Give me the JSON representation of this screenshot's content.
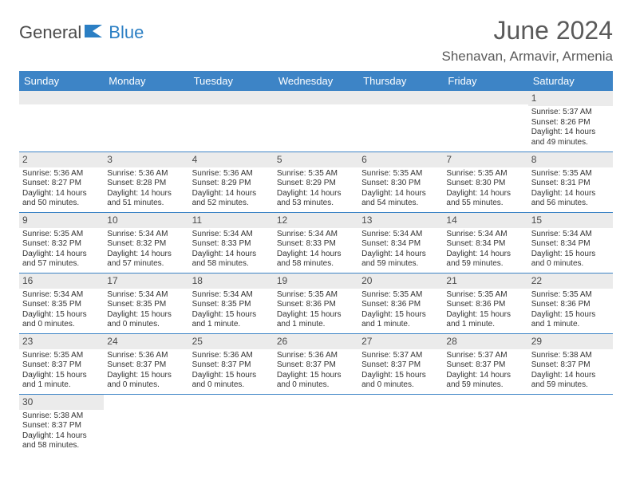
{
  "logo": {
    "part1": "General",
    "part2": "Blue"
  },
  "title": "June 2024",
  "location": "Shenavan, Armavir, Armenia",
  "colors": {
    "header_bg": "#3d84c6",
    "header_text": "#ffffff",
    "daynum_bg": "#ebebeb",
    "border": "#3d84c6",
    "text": "#333333",
    "title_text": "#5a5a5a",
    "logo_gray": "#4a4a4a",
    "logo_blue": "#2b7fc4"
  },
  "weekdays": [
    "Sunday",
    "Monday",
    "Tuesday",
    "Wednesday",
    "Thursday",
    "Friday",
    "Saturday"
  ],
  "weeks": [
    [
      null,
      null,
      null,
      null,
      null,
      null,
      {
        "d": "1",
        "sr": "5:37 AM",
        "ss": "8:26 PM",
        "dl": "14 hours and 49 minutes."
      }
    ],
    [
      {
        "d": "2",
        "sr": "5:36 AM",
        "ss": "8:27 PM",
        "dl": "14 hours and 50 minutes."
      },
      {
        "d": "3",
        "sr": "5:36 AM",
        "ss": "8:28 PM",
        "dl": "14 hours and 51 minutes."
      },
      {
        "d": "4",
        "sr": "5:36 AM",
        "ss": "8:29 PM",
        "dl": "14 hours and 52 minutes."
      },
      {
        "d": "5",
        "sr": "5:35 AM",
        "ss": "8:29 PM",
        "dl": "14 hours and 53 minutes."
      },
      {
        "d": "6",
        "sr": "5:35 AM",
        "ss": "8:30 PM",
        "dl": "14 hours and 54 minutes."
      },
      {
        "d": "7",
        "sr": "5:35 AM",
        "ss": "8:30 PM",
        "dl": "14 hours and 55 minutes."
      },
      {
        "d": "8",
        "sr": "5:35 AM",
        "ss": "8:31 PM",
        "dl": "14 hours and 56 minutes."
      }
    ],
    [
      {
        "d": "9",
        "sr": "5:35 AM",
        "ss": "8:32 PM",
        "dl": "14 hours and 57 minutes."
      },
      {
        "d": "10",
        "sr": "5:34 AM",
        "ss": "8:32 PM",
        "dl": "14 hours and 57 minutes."
      },
      {
        "d": "11",
        "sr": "5:34 AM",
        "ss": "8:33 PM",
        "dl": "14 hours and 58 minutes."
      },
      {
        "d": "12",
        "sr": "5:34 AM",
        "ss": "8:33 PM",
        "dl": "14 hours and 58 minutes."
      },
      {
        "d": "13",
        "sr": "5:34 AM",
        "ss": "8:34 PM",
        "dl": "14 hours and 59 minutes."
      },
      {
        "d": "14",
        "sr": "5:34 AM",
        "ss": "8:34 PM",
        "dl": "14 hours and 59 minutes."
      },
      {
        "d": "15",
        "sr": "5:34 AM",
        "ss": "8:34 PM",
        "dl": "15 hours and 0 minutes."
      }
    ],
    [
      {
        "d": "16",
        "sr": "5:34 AM",
        "ss": "8:35 PM",
        "dl": "15 hours and 0 minutes."
      },
      {
        "d": "17",
        "sr": "5:34 AM",
        "ss": "8:35 PM",
        "dl": "15 hours and 0 minutes."
      },
      {
        "d": "18",
        "sr": "5:34 AM",
        "ss": "8:35 PM",
        "dl": "15 hours and 1 minute."
      },
      {
        "d": "19",
        "sr": "5:35 AM",
        "ss": "8:36 PM",
        "dl": "15 hours and 1 minute."
      },
      {
        "d": "20",
        "sr": "5:35 AM",
        "ss": "8:36 PM",
        "dl": "15 hours and 1 minute."
      },
      {
        "d": "21",
        "sr": "5:35 AM",
        "ss": "8:36 PM",
        "dl": "15 hours and 1 minute."
      },
      {
        "d": "22",
        "sr": "5:35 AM",
        "ss": "8:36 PM",
        "dl": "15 hours and 1 minute."
      }
    ],
    [
      {
        "d": "23",
        "sr": "5:35 AM",
        "ss": "8:37 PM",
        "dl": "15 hours and 1 minute."
      },
      {
        "d": "24",
        "sr": "5:36 AM",
        "ss": "8:37 PM",
        "dl": "15 hours and 0 minutes."
      },
      {
        "d": "25",
        "sr": "5:36 AM",
        "ss": "8:37 PM",
        "dl": "15 hours and 0 minutes."
      },
      {
        "d": "26",
        "sr": "5:36 AM",
        "ss": "8:37 PM",
        "dl": "15 hours and 0 minutes."
      },
      {
        "d": "27",
        "sr": "5:37 AM",
        "ss": "8:37 PM",
        "dl": "15 hours and 0 minutes."
      },
      {
        "d": "28",
        "sr": "5:37 AM",
        "ss": "8:37 PM",
        "dl": "14 hours and 59 minutes."
      },
      {
        "d": "29",
        "sr": "5:38 AM",
        "ss": "8:37 PM",
        "dl": "14 hours and 59 minutes."
      }
    ],
    [
      {
        "d": "30",
        "sr": "5:38 AM",
        "ss": "8:37 PM",
        "dl": "14 hours and 58 minutes."
      },
      null,
      null,
      null,
      null,
      null,
      null
    ]
  ],
  "labels": {
    "sunrise": "Sunrise: ",
    "sunset": "Sunset: ",
    "daylight": "Daylight: "
  }
}
